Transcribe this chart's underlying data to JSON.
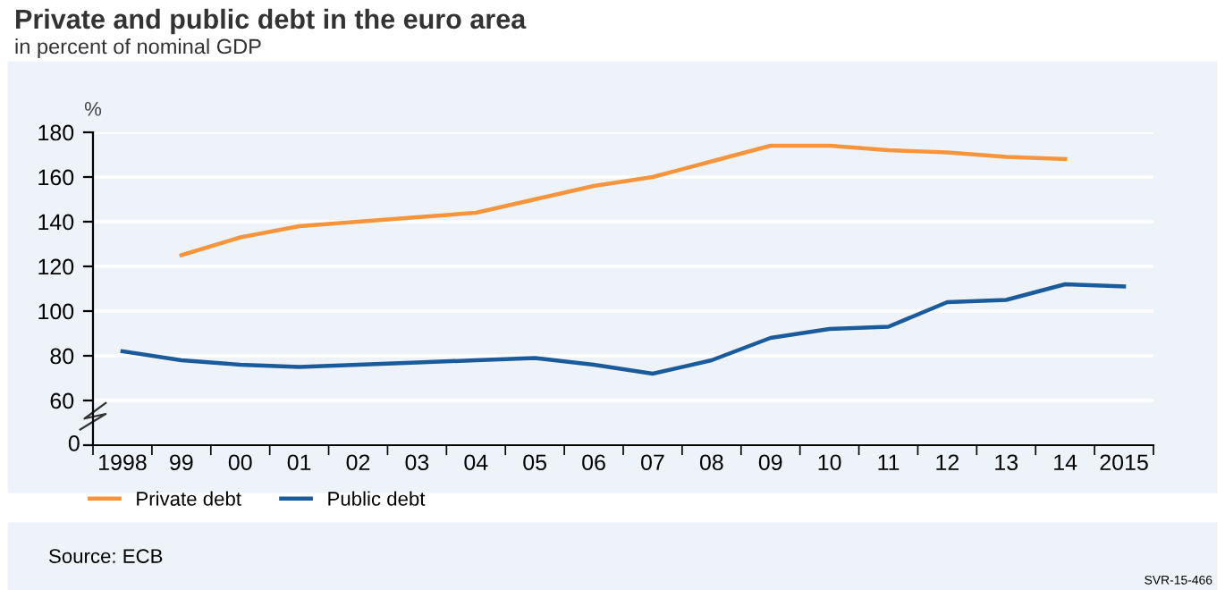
{
  "chart_data": {
    "type": "line",
    "title": "Private and public debt in the euro area",
    "subtitle": "in percent of nominal GDP",
    "ylabel": "%",
    "categories": [
      "1998",
      "99",
      "00",
      "01",
      "02",
      "03",
      "04",
      "05",
      "06",
      "07",
      "08",
      "09",
      "10",
      "11",
      "12",
      "13",
      "14",
      "2015"
    ],
    "series": [
      {
        "name": "Private debt",
        "color": "#f7943c",
        "values": [
          null,
          125,
          133,
          138,
          140,
          142,
          144,
          150,
          156,
          160,
          167,
          174,
          174,
          172,
          171,
          169,
          168,
          null
        ]
      },
      {
        "name": "Public debt",
        "color": "#1a5b9c",
        "values": [
          82,
          78,
          76,
          75,
          76,
          77,
          78,
          79,
          76,
          72,
          78,
          88,
          92,
          93,
          104,
          105,
          112,
          111
        ]
      }
    ],
    "ylim": [
      40,
      180
    ],
    "yticks": [
      {
        "value": 40,
        "label": null
      },
      60,
      80,
      100,
      120,
      140,
      160,
      180
    ],
    "grid": "y",
    "legend": "bottom left",
    "marker": "none",
    "line_style": "solid",
    "annotations": [
      "Source: ECB",
      "SVR-15-466",
      "0"
    ]
  }
}
